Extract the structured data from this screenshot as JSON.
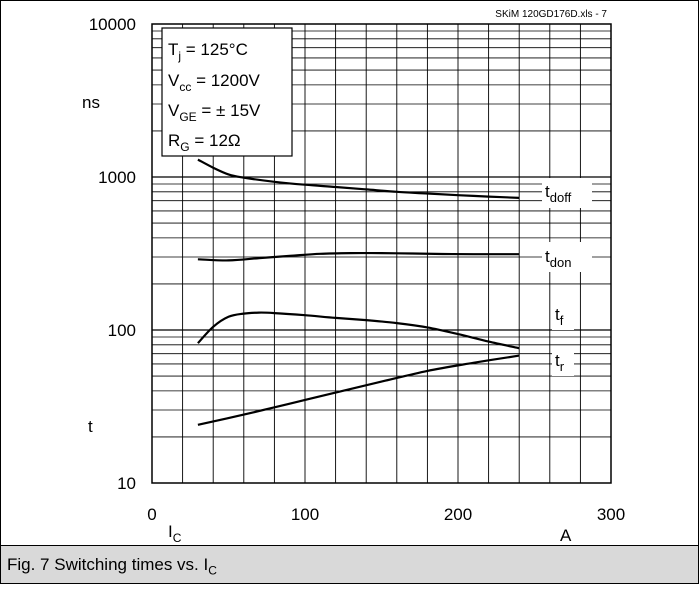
{
  "source_label": "SKiM 120GD176D.xls - 7",
  "caption": {
    "text": "Fig. 7 Switching times vs. I",
    "sub": "C"
  },
  "conditions": [
    {
      "main": "T",
      "sub": "j",
      "rest": " = 125°C"
    },
    {
      "main": "V",
      "sub": "cc",
      "rest": " = 1200V"
    },
    {
      "main": "V",
      "sub": "GE",
      "rest": " = ± 15V"
    },
    {
      "main": "R",
      "sub": "G",
      "rest": " = 12Ω"
    }
  ],
  "chart_data": {
    "type": "line",
    "x_scale": "linear",
    "y_scale": "log",
    "xlim": [
      0,
      300
    ],
    "ylim": [
      10,
      10000
    ],
    "x_ticks": [
      "0",
      "100",
      "200",
      "300"
    ],
    "y_ticks": [
      "10",
      "100",
      "1000",
      "10000"
    ],
    "xlabel": {
      "main": "I",
      "sub": "C"
    },
    "x_unit": "A",
    "ylabel": "t",
    "y_unit": "ns",
    "grid": true,
    "series": [
      {
        "name": "t_doff",
        "label_main": "t",
        "label_sub": "doff",
        "x": [
          30,
          40,
          50,
          60,
          80,
          100,
          120,
          140,
          160,
          180,
          200,
          220,
          240
        ],
        "y": [
          1300,
          1150,
          1040,
          990,
          930,
          890,
          860,
          830,
          800,
          780,
          760,
          745,
          730
        ]
      },
      {
        "name": "t_don",
        "label_main": "t",
        "label_sub": "don",
        "x": [
          30,
          50,
          70,
          90,
          110,
          130,
          150,
          170,
          190,
          210,
          240
        ],
        "y": [
          290,
          285,
          295,
          305,
          315,
          318,
          318,
          316,
          314,
          313,
          313
        ]
      },
      {
        "name": "t_f",
        "label_main": "t",
        "label_sub": "f",
        "x": [
          30,
          40,
          50,
          60,
          70,
          80,
          100,
          120,
          140,
          160,
          180,
          200,
          220,
          240
        ],
        "y": [
          82,
          105,
          122,
          128,
          130,
          129,
          125,
          120,
          116,
          111,
          104,
          94,
          84,
          76
        ]
      },
      {
        "name": "t_r",
        "label_main": "t",
        "label_sub": "r",
        "x": [
          30,
          60,
          90,
          120,
          150,
          180,
          210,
          240
        ],
        "y": [
          24,
          28,
          33,
          39,
          46,
          54,
          61,
          68
        ]
      }
    ]
  }
}
